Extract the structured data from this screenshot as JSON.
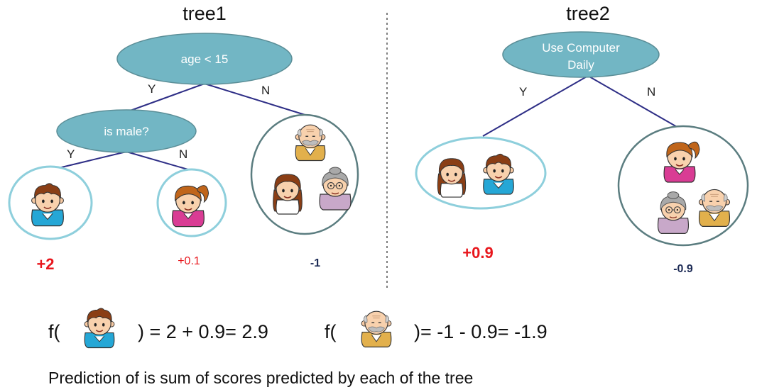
{
  "tree1": {
    "title": "tree1",
    "root_label": "age < 15",
    "child_label": "is male?",
    "edge_y1": "Y",
    "edge_n1": "N",
    "edge_y2": "Y",
    "edge_n2": "N",
    "leaf1_score": "+2",
    "leaf2_score": "+0.1",
    "leaf3_score": "-1"
  },
  "tree2": {
    "title": "tree2",
    "root_label_line1": "Use Computer",
    "root_label_line2": "Daily",
    "edge_y": "Y",
    "edge_n": "N",
    "leaf1_score": "+0.9",
    "leaf2_score": "-0.9"
  },
  "formulas": {
    "f_open": "f(",
    "boy_result": ") = 2 + 0.9= 2.9",
    "grandpa_result": ")= -1 - 0.9= -1.9"
  },
  "caption": "Prediction of is sum of scores predicted by each of the tree",
  "colors": {
    "node_fill": "#72b6c4",
    "edge_line": "#2e2e86",
    "leaf_border_light": "#8ecfdc",
    "leaf_border_dark": "#5b7d80",
    "score_red": "#e8161c",
    "score_dark": "#1c2a55"
  },
  "icons": [
    "boy-face-icon",
    "girl-face-icon",
    "grandpa-face-icon",
    "grandma-face-icon",
    "mother-face-icon"
  ]
}
